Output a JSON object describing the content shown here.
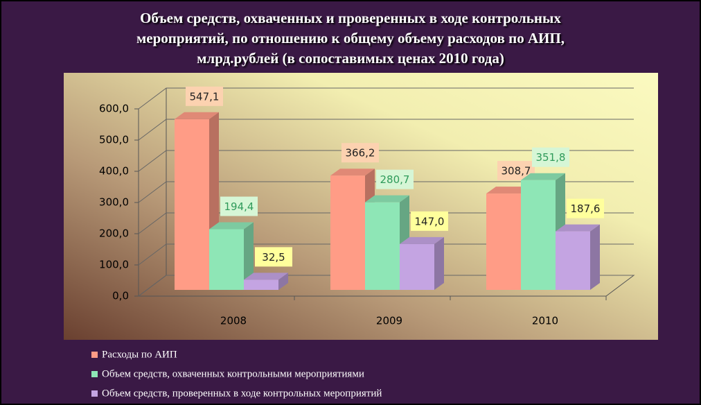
{
  "chart_data": {
    "type": "bar3d",
    "title": [
      "Объем средств, охваченных и проверенных в ходе контрольных",
      "мероприятий, по отношению к общему объему расходов  по АИП,",
      "млрд.рублей (в сопоставимых ценах 2010 года)"
    ],
    "categories": [
      "2008",
      "2009",
      "2010"
    ],
    "series": [
      {
        "name": "Расходы по АИП",
        "color": "#ff9c86",
        "values": [
          547.1,
          366.2,
          308.7
        ],
        "value_labels": [
          "547,1",
          "366,2",
          "308,7"
        ],
        "label_color": "#fcd2b0",
        "label_text_color": "#222222"
      },
      {
        "name": "Объем средств, охваченных контрольными мероприятиями",
        "color": "#8ee6b6",
        "values": [
          194.4,
          280.7,
          351.8
        ],
        "value_labels": [
          "194,4",
          "280,7",
          "351,8"
        ],
        "label_color": "#d6f6d6",
        "label_text_color": "#2f9a5a"
      },
      {
        "name": "Объем средств, проверенных в ходе контрольных мероприятий",
        "color": "#c4a4e2",
        "values": [
          32.5,
          147.0,
          187.6
        ],
        "value_labels": [
          "32,5",
          "147,0",
          "187,6"
        ],
        "label_color": "#ffff9c",
        "label_text_color": "#222222"
      }
    ],
    "ylim": [
      0,
      600
    ],
    "yticks": [
      {
        "value": 0,
        "label": "0,0"
      },
      {
        "value": 100,
        "label": "100,0"
      },
      {
        "value": 200,
        "label": "200,0"
      },
      {
        "value": 300,
        "label": "300,0"
      },
      {
        "value": 400,
        "label": "400,0"
      },
      {
        "value": 500,
        "label": "500,0"
      },
      {
        "value": 600,
        "label": "600,0"
      }
    ],
    "grid": true
  }
}
